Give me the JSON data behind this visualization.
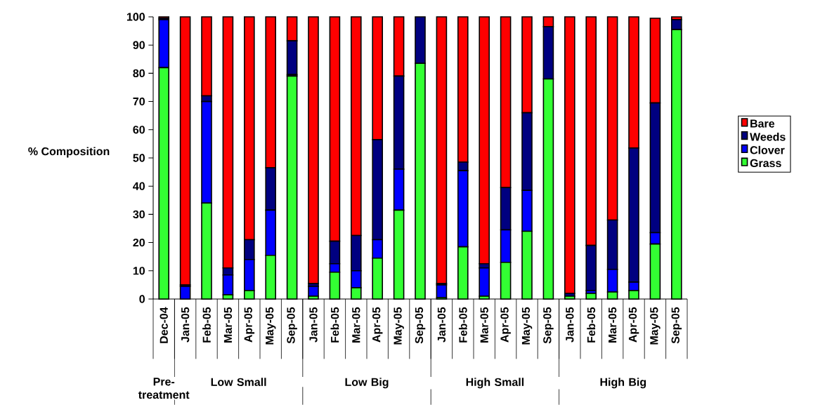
{
  "chart_data": {
    "type": "bar",
    "stacked": true,
    "ylabel": "% Composition",
    "categories": [
      "Dec-04",
      "Jan-05",
      "Feb-05",
      "Mar-05",
      "Apr-05",
      "May-05",
      "Sep-05",
      "Jan-05",
      "Feb-05",
      "Mar-05",
      "Apr-05",
      "May-05",
      "Sep-05",
      "Jan-05",
      "Feb-05",
      "Mar-05",
      "Apr-05",
      "May-05",
      "Sep-05",
      "Jan-05",
      "Feb-05",
      "Mar-05",
      "Apr-05",
      "May-05",
      "Sep-05"
    ],
    "series": [
      {
        "name": "Grass",
        "color": "#33ff33",
        "values": [
          82,
          0,
          34,
          1.5,
          3,
          15.5,
          79,
          1,
          9.5,
          4,
          14.5,
          31.5,
          83.5,
          0.5,
          18.5,
          1,
          13,
          24,
          78,
          1,
          2,
          2.5,
          3,
          19.5,
          95.5
        ]
      },
      {
        "name": "Clover",
        "color": "#0000ff",
        "values": [
          17,
          4.5,
          36,
          7,
          11,
          16,
          0.5,
          3.5,
          3,
          6,
          6.5,
          14.5,
          0,
          4.5,
          27,
          10,
          11.5,
          14.5,
          0,
          0,
          1,
          8,
          3,
          4,
          0
        ]
      },
      {
        "name": "Weeds",
        "color": "#000080",
        "values": [
          0.5,
          0.5,
          2,
          2.5,
          7,
          15,
          12,
          1,
          8,
          12.5,
          35.5,
          33,
          16.5,
          0.5,
          3,
          1.5,
          15,
          27.5,
          18.5,
          1,
          16,
          17.5,
          47.5,
          46,
          3.5
        ]
      },
      {
        "name": "Bare",
        "color": "#ff0000",
        "values": [
          0.5,
          95,
          28,
          89,
          79,
          53.5,
          8.5,
          94.5,
          79.5,
          77.5,
          43.5,
          21,
          0,
          94.5,
          51.5,
          87.5,
          60.5,
          34,
          3.5,
          98,
          81,
          72,
          46.5,
          30,
          1
        ]
      }
    ],
    "ylim": [
      0,
      100
    ],
    "yticks": [
      0,
      10,
      20,
      30,
      40,
      50,
      60,
      70,
      80,
      90,
      100
    ],
    "legend": "right",
    "grid": false,
    "annotations": [
      "Pre-treatment",
      "Low Small",
      "Low Big",
      "High Small",
      "High Big"
    ]
  }
}
